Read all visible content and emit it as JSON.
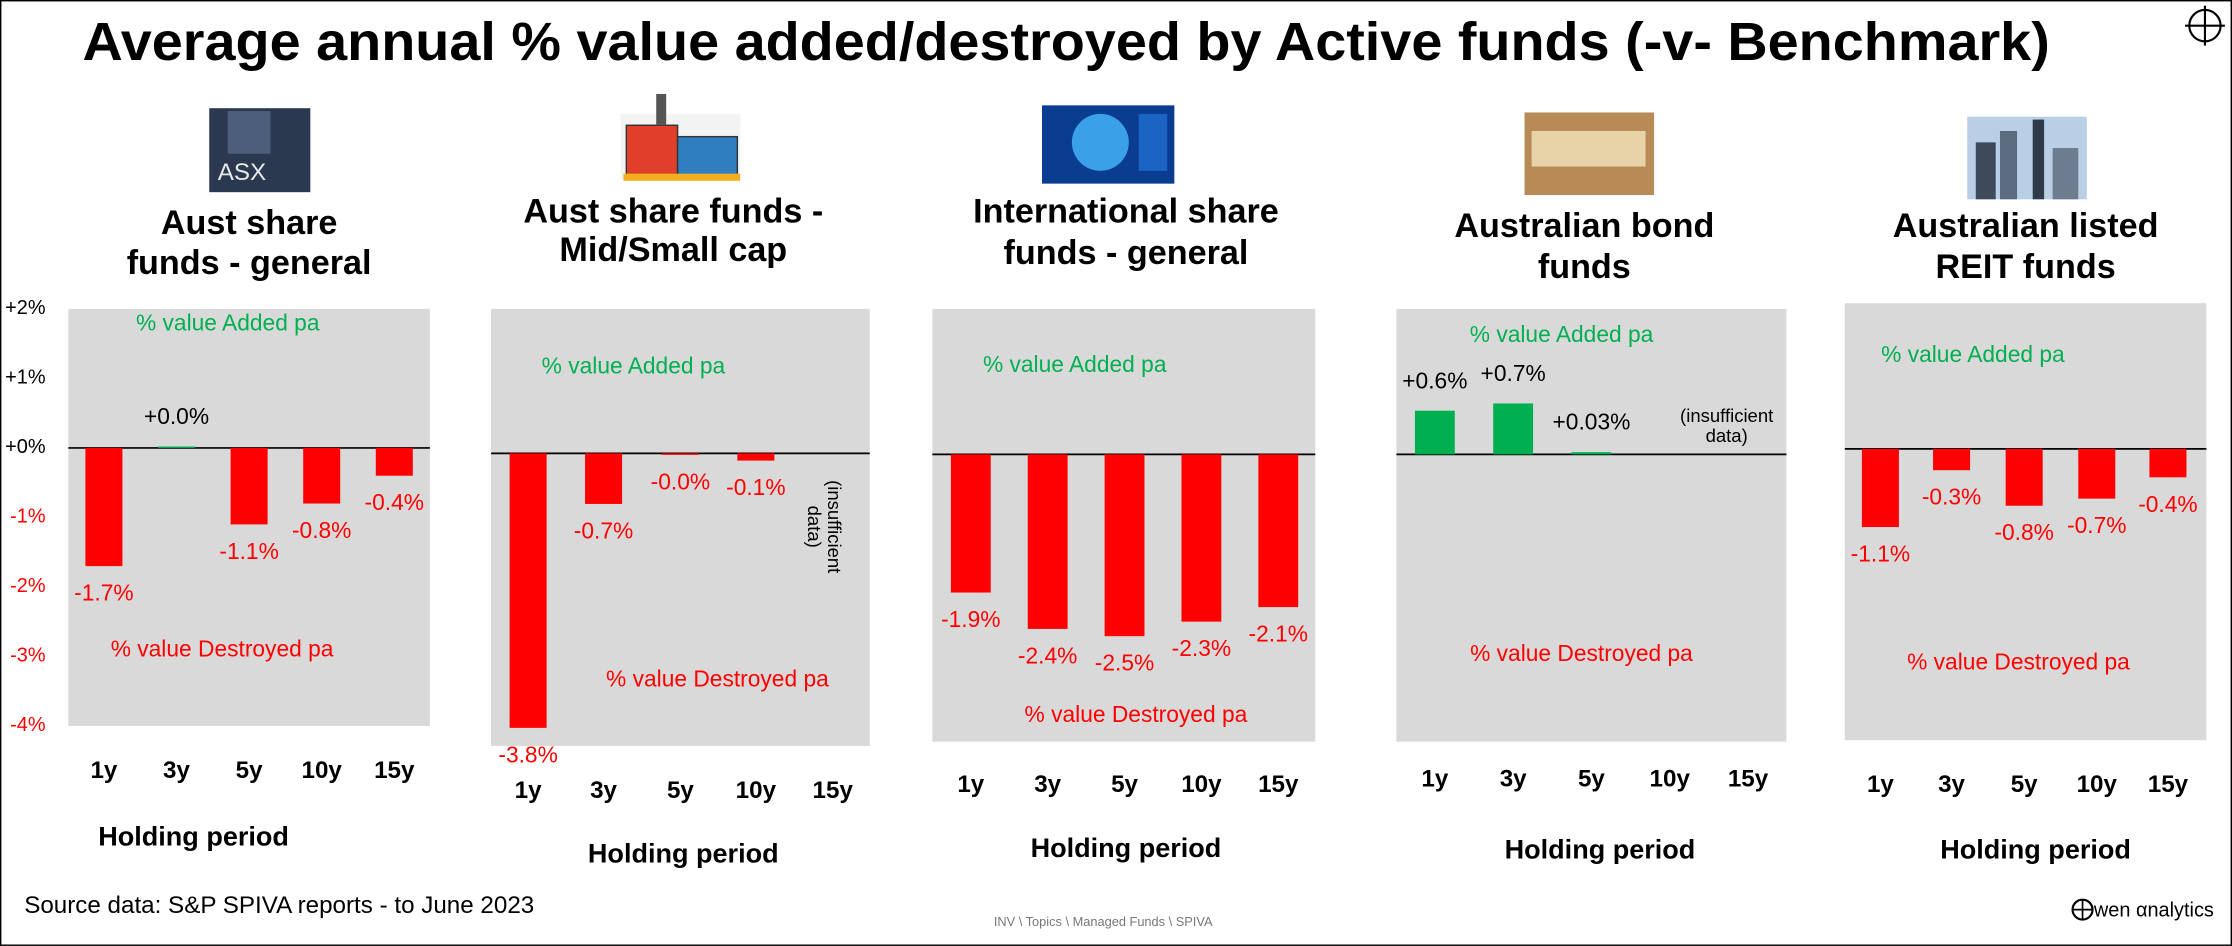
{
  "title": "Average annual % value added/destroyed by Active funds (-v- Benchmark)",
  "source": "Source data: S&P SPIVA reports - to June 2023",
  "footer_path": "INV \\ Topics \\ Managed Funds \\ SPIVA",
  "logo": "wen αnalytics",
  "chart_data": [
    {
      "type": "bar",
      "title": [
        "Aust share",
        "funds - general"
      ],
      "image_text": "ASX",
      "categories": [
        "1y",
        "3y",
        "5y",
        "10y",
        "15y"
      ],
      "values": [
        -1.7,
        0.02,
        -1.1,
        -0.8,
        -0.4
      ],
      "value_labels": [
        "-1.7%",
        "+0.0%",
        "-1.1%",
        "-0.8%",
        "-0.4%"
      ],
      "negative_color": "#ff0000",
      "positive_color": "#00b050",
      "ylim": [
        -4,
        2
      ],
      "yticks": [
        {
          "value": 2,
          "label": "+2%"
        },
        {
          "value": 1,
          "label": "+1%"
        },
        {
          "value": 0,
          "label": "+0%"
        },
        {
          "value": -1,
          "label": "-1%"
        },
        {
          "value": -2,
          "label": "-2%"
        },
        {
          "value": -3,
          "label": "-3%"
        },
        {
          "value": -4,
          "label": "-4%"
        }
      ],
      "added_label": "% value Added pa",
      "destroyed_label": "% value Destroyed pa",
      "x_label": "Holding period"
    },
    {
      "type": "bar",
      "title": [
        "Aust share funds -",
        "Mid/Small cap"
      ],
      "categories": [
        "1y",
        "3y",
        "5y",
        "10y",
        "15y"
      ],
      "values": [
        -3.8,
        -0.7,
        -0.02,
        -0.1,
        null
      ],
      "value_labels": [
        "-3.8%",
        "-0.7%",
        "-0.0%",
        "-0.1%",
        null
      ],
      "negative_color": "#ff0000",
      "positive_color": "#00b050",
      "ylim": [
        -4.05,
        2
      ],
      "added_label": "% value Added pa",
      "destroyed_label": "% value Destroyed pa",
      "note": [
        "(insufficient",
        "data)"
      ],
      "x_label": "Holding period"
    },
    {
      "type": "bar",
      "title": [
        "International share",
        "funds - general"
      ],
      "categories": [
        "1y",
        "3y",
        "5y",
        "10y",
        "15y"
      ],
      "values": [
        -1.9,
        -2.4,
        -2.5,
        -2.3,
        -2.1
      ],
      "value_labels": [
        "-1.9%",
        "-2.4%",
        "-2.5%",
        "-2.3%",
        "-2.1%"
      ],
      "negative_color": "#ff0000",
      "positive_color": "#00b050",
      "ylim": [
        -3.95,
        2
      ],
      "added_label": "% value Added pa",
      "destroyed_label": "% value Destroyed pa",
      "x_label": "Holding period"
    },
    {
      "type": "bar",
      "title": [
        "Australian bond",
        "funds"
      ],
      "categories": [
        "1y",
        "3y",
        "5y",
        "10y",
        "15y"
      ],
      "values": [
        0.6,
        0.7,
        0.03,
        null,
        null
      ],
      "value_labels": [
        "+0.6%",
        "+0.7%",
        "+0.03%",
        null,
        null
      ],
      "negative_color": "#ff0000",
      "positive_color": "#00b050",
      "ylim": [
        -3.95,
        2
      ],
      "added_label": "% value Added pa",
      "destroyed_label": "% value Destroyed pa",
      "note": [
        "(insufficient",
        "data)"
      ],
      "x_label": "Holding period"
    },
    {
      "type": "bar",
      "title": [
        "Australian listed",
        "REIT funds"
      ],
      "categories": [
        "1y",
        "3y",
        "5y",
        "10y",
        "15y"
      ],
      "values": [
        -1.1,
        -0.3,
        -0.8,
        -0.7,
        -0.4
      ],
      "value_labels": [
        "-1.1%",
        "-0.3%",
        "-0.8%",
        "-0.7%",
        "-0.4%"
      ],
      "negative_color": "#ff0000",
      "positive_color": "#00b050",
      "ylim": [
        -4.1,
        2.05
      ],
      "added_label": "% value Added pa",
      "destroyed_label": "% value Destroyed pa",
      "x_label": "Holding period"
    }
  ]
}
